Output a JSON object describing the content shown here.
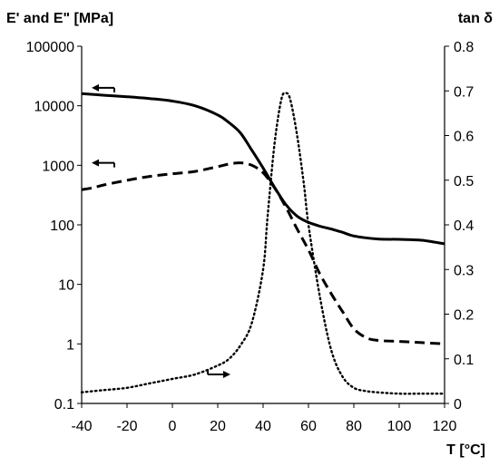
{
  "chart_data": {
    "type": "line",
    "left_axis_title": "E' and E\" [MPa]",
    "right_axis_title": "tan δ",
    "x_axis_title": "T [°C]",
    "x_ticks": [
      "-40",
      "-20",
      "0",
      "20",
      "40",
      "60",
      "80",
      "100",
      "120"
    ],
    "y_left_ticks": [
      "100000",
      "10000",
      "1000",
      "100",
      "10",
      "1",
      "0.1"
    ],
    "y_right_ticks": [
      "0.8",
      "0.7",
      "0.6",
      "0.5",
      "0.4",
      "0.3",
      "0.2",
      "0.1",
      "0"
    ],
    "xlim": [
      -40,
      120
    ],
    "y_left_scale": "log",
    "y_left_lim": [
      0.1,
      100000
    ],
    "y_right_lim": [
      0,
      0.8
    ],
    "grid": false,
    "series": [
      {
        "style": "solid",
        "axis": "left",
        "x": [
          -40,
          -30,
          -20,
          -10,
          0,
          10,
          20,
          25,
          30,
          35,
          40,
          45,
          50,
          55,
          60,
          65,
          70,
          75,
          80,
          90,
          100,
          110,
          120
        ],
        "y": [
          16000,
          15000,
          14200,
          13200,
          12000,
          10000,
          7000,
          5200,
          3500,
          1800,
          900,
          430,
          220,
          140,
          110,
          95,
          85,
          75,
          65,
          58,
          57,
          55,
          48
        ]
      },
      {
        "style": "dashed",
        "axis": "left",
        "x": [
          -40,
          -35,
          -30,
          -20,
          -10,
          0,
          10,
          20,
          25,
          30,
          35,
          40,
          45,
          50,
          55,
          60,
          65,
          70,
          75,
          80,
          85,
          90,
          100,
          110,
          120
        ],
        "y": [
          390,
          420,
          470,
          560,
          650,
          720,
          790,
          950,
          1050,
          1100,
          1000,
          750,
          420,
          200,
          85,
          38,
          15,
          7,
          3.5,
          1.8,
          1.3,
          1.15,
          1.1,
          1.05,
          1.0
        ]
      },
      {
        "style": "dotted",
        "axis": "right",
        "x": [
          -40,
          -30,
          -20,
          -10,
          0,
          10,
          20,
          25,
          30,
          35,
          40,
          42,
          45,
          48,
          50,
          52,
          55,
          58,
          60,
          65,
          70,
          75,
          80,
          85,
          90,
          100,
          110,
          120
        ],
        "y": [
          0.025,
          0.03,
          0.035,
          0.045,
          0.055,
          0.065,
          0.085,
          0.1,
          0.13,
          0.18,
          0.3,
          0.42,
          0.58,
          0.68,
          0.695,
          0.68,
          0.6,
          0.49,
          0.4,
          0.24,
          0.12,
          0.06,
          0.035,
          0.028,
          0.025,
          0.022,
          0.022,
          0.022
        ]
      }
    ],
    "annotations": [
      {
        "type": "arrow",
        "direction": "left",
        "x": -30,
        "axis": "left",
        "y": 20000
      },
      {
        "type": "arrow",
        "direction": "left",
        "x": -30,
        "axis": "left",
        "y": 1100
      },
      {
        "type": "arrow",
        "direction": "right",
        "x": 20,
        "axis": "right",
        "y": 0.065
      }
    ]
  }
}
